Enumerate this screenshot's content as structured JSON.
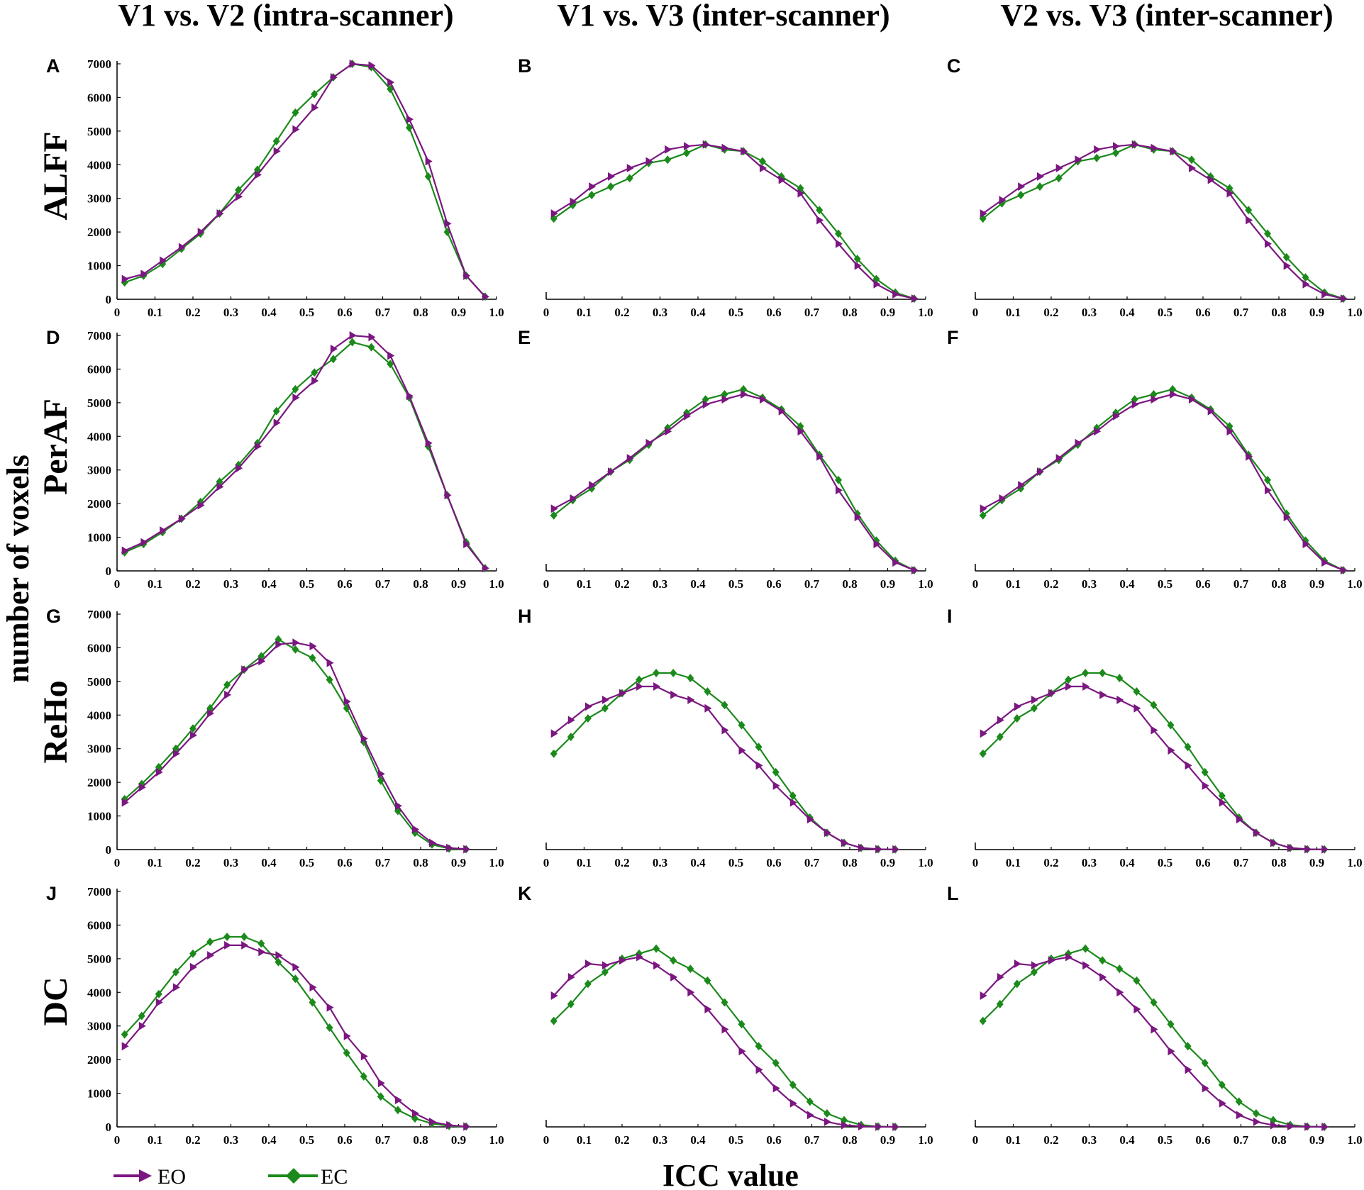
{
  "figure": {
    "column_headers": [
      "V1 vs. V2 (intra-scanner)",
      "V1 vs. V3 (inter-scanner)",
      "V2 vs. V3 (inter-scanner)"
    ],
    "row_labels": [
      "ALFF",
      "PerAF",
      "ReHo",
      "DC"
    ],
    "ylabel": "number of voxels",
    "xlabel": "ICC value",
    "legend": [
      {
        "name": "EO",
        "color": "#7b1780",
        "marker": "triangle-right"
      },
      {
        "name": "EC",
        "color": "#1b8a1b",
        "marker": "diamond"
      }
    ],
    "y_ticks": [
      0,
      1000,
      2000,
      3000,
      4000,
      5000,
      6000,
      7000
    ],
    "x_ticks": [
      "0",
      "0.1",
      "0.2",
      "0.3",
      "0.4",
      "0.5",
      "0.6",
      "0.7",
      "0.8",
      "0.9",
      "1.0"
    ]
  },
  "chart_data": [
    {
      "panel": "A",
      "type": "line",
      "row": "ALFF",
      "column": "V1 vs. V2 (intra-scanner)",
      "xlim": [
        0,
        1
      ],
      "ylim": [
        0,
        7000
      ],
      "y_axis_labels": true,
      "x": [
        0.02,
        0.07,
        0.12,
        0.17,
        0.22,
        0.27,
        0.32,
        0.37,
        0.42,
        0.47,
        0.52,
        0.57,
        0.62,
        0.67,
        0.72,
        0.77,
        0.82,
        0.87,
        0.92,
        0.97
      ],
      "series": [
        {
          "name": "EO",
          "values": [
            600,
            750,
            1150,
            1550,
            2000,
            2550,
            3050,
            3700,
            4400,
            5050,
            5700,
            6600,
            7000,
            6950,
            6450,
            5350,
            4100,
            2250,
            700,
            80
          ]
        },
        {
          "name": "EC",
          "values": [
            500,
            700,
            1050,
            1500,
            1950,
            2550,
            3250,
            3850,
            4700,
            5550,
            6100,
            6600,
            7000,
            6900,
            6250,
            5100,
            3650,
            2000,
            700,
            80
          ]
        }
      ]
    },
    {
      "panel": "B",
      "type": "line",
      "row": "ALFF",
      "column": "V1 vs. V3 (inter-scanner)",
      "xlim": [
        0,
        1
      ],
      "ylim": [
        0,
        7000
      ],
      "y_axis_labels": false,
      "x": [
        0.02,
        0.07,
        0.12,
        0.17,
        0.22,
        0.27,
        0.32,
        0.37,
        0.42,
        0.47,
        0.52,
        0.57,
        0.62,
        0.67,
        0.72,
        0.77,
        0.82,
        0.87,
        0.92,
        0.97
      ],
      "series": [
        {
          "name": "EO",
          "values": [
            2550,
            2900,
            3350,
            3650,
            3900,
            4100,
            4450,
            4550,
            4600,
            4500,
            4400,
            3900,
            3550,
            3150,
            2350,
            1650,
            1000,
            450,
            150,
            20
          ]
        },
        {
          "name": "EC",
          "values": [
            2400,
            2800,
            3100,
            3350,
            3600,
            4050,
            4150,
            4350,
            4600,
            4450,
            4400,
            4100,
            3650,
            3300,
            2650,
            1950,
            1200,
            600,
            200,
            20
          ]
        }
      ]
    },
    {
      "panel": "C",
      "type": "line",
      "row": "ALFF",
      "column": "V2 vs. V3 (inter-scanner)",
      "xlim": [
        0,
        1
      ],
      "ylim": [
        0,
        7000
      ],
      "y_axis_labels": false,
      "x": [
        0.02,
        0.07,
        0.12,
        0.17,
        0.22,
        0.27,
        0.32,
        0.37,
        0.42,
        0.47,
        0.52,
        0.57,
        0.62,
        0.67,
        0.72,
        0.77,
        0.82,
        0.87,
        0.92,
        0.97
      ],
      "series": [
        {
          "name": "EO",
          "values": [
            2550,
            2950,
            3350,
            3650,
            3900,
            4150,
            4450,
            4550,
            4600,
            4500,
            4400,
            3900,
            3550,
            3150,
            2350,
            1650,
            1000,
            450,
            150,
            20
          ]
        },
        {
          "name": "EC",
          "values": [
            2400,
            2850,
            3100,
            3350,
            3600,
            4100,
            4200,
            4350,
            4600,
            4450,
            4400,
            4150,
            3650,
            3300,
            2650,
            1950,
            1250,
            650,
            200,
            20
          ]
        }
      ]
    },
    {
      "panel": "D",
      "type": "line",
      "row": "PerAF",
      "column": "V1 vs. V2 (intra-scanner)",
      "xlim": [
        0,
        1
      ],
      "ylim": [
        0,
        7000
      ],
      "y_axis_labels": true,
      "x": [
        0.02,
        0.07,
        0.12,
        0.17,
        0.22,
        0.27,
        0.32,
        0.37,
        0.42,
        0.47,
        0.52,
        0.57,
        0.62,
        0.67,
        0.72,
        0.77,
        0.82,
        0.87,
        0.92,
        0.97
      ],
      "series": [
        {
          "name": "EO",
          "values": [
            600,
            850,
            1200,
            1550,
            1950,
            2500,
            3050,
            3700,
            4400,
            5150,
            5650,
            6600,
            7000,
            6950,
            6400,
            5200,
            3800,
            2250,
            800,
            80
          ]
        },
        {
          "name": "EC",
          "values": [
            550,
            800,
            1150,
            1550,
            2050,
            2650,
            3150,
            3800,
            4750,
            5400,
            5900,
            6300,
            6800,
            6650,
            6150,
            5150,
            3700,
            2250,
            850,
            80
          ]
        }
      ]
    },
    {
      "panel": "E",
      "type": "line",
      "row": "PerAF",
      "column": "V1 vs. V3 (inter-scanner)",
      "xlim": [
        0,
        1
      ],
      "ylim": [
        0,
        7000
      ],
      "y_axis_labels": false,
      "x": [
        0.02,
        0.07,
        0.12,
        0.17,
        0.22,
        0.27,
        0.32,
        0.37,
        0.42,
        0.47,
        0.52,
        0.57,
        0.62,
        0.67,
        0.72,
        0.77,
        0.82,
        0.87,
        0.92,
        0.97
      ],
      "series": [
        {
          "name": "EO",
          "values": [
            1850,
            2150,
            2550,
            2950,
            3350,
            3800,
            4150,
            4600,
            4950,
            5100,
            5250,
            5100,
            4750,
            4150,
            3400,
            2400,
            1600,
            800,
            250,
            20
          ]
        },
        {
          "name": "EC",
          "values": [
            1650,
            2100,
            2450,
            2950,
            3300,
            3750,
            4250,
            4700,
            5100,
            5250,
            5400,
            5150,
            4800,
            4300,
            3450,
            2700,
            1700,
            900,
            300,
            20
          ]
        }
      ]
    },
    {
      "panel": "F",
      "type": "line",
      "row": "PerAF",
      "column": "V2 vs. V3 (inter-scanner)",
      "xlim": [
        0,
        1
      ],
      "ylim": [
        0,
        7000
      ],
      "y_axis_labels": false,
      "x": [
        0.02,
        0.07,
        0.12,
        0.17,
        0.22,
        0.27,
        0.32,
        0.37,
        0.42,
        0.47,
        0.52,
        0.57,
        0.62,
        0.67,
        0.72,
        0.77,
        0.82,
        0.87,
        0.92,
        0.97
      ],
      "series": [
        {
          "name": "EO",
          "values": [
            1850,
            2150,
            2550,
            2950,
            3350,
            3800,
            4150,
            4600,
            4950,
            5100,
            5250,
            5100,
            4750,
            4150,
            3400,
            2400,
            1600,
            800,
            250,
            20
          ]
        },
        {
          "name": "EC",
          "values": [
            1650,
            2100,
            2450,
            2950,
            3300,
            3750,
            4250,
            4700,
            5100,
            5250,
            5400,
            5150,
            4800,
            4300,
            3450,
            2700,
            1700,
            900,
            300,
            20
          ]
        }
      ]
    },
    {
      "panel": "G",
      "type": "line",
      "row": "ReHo",
      "column": "V1 vs. V2 (intra-scanner)",
      "xlim": [
        0,
        1
      ],
      "ylim": [
        0,
        7000
      ],
      "y_axis_labels": true,
      "x": [
        0.02,
        0.065,
        0.11,
        0.155,
        0.2,
        0.245,
        0.29,
        0.335,
        0.38,
        0.425,
        0.47,
        0.515,
        0.56,
        0.605,
        0.65,
        0.695,
        0.74,
        0.785,
        0.83,
        0.875,
        0.92
      ],
      "series": [
        {
          "name": "EO",
          "values": [
            1400,
            1850,
            2300,
            2850,
            3400,
            4050,
            4600,
            5350,
            5600,
            6100,
            6150,
            6050,
            5550,
            4400,
            3300,
            2250,
            1300,
            600,
            200,
            50,
            10
          ]
        },
        {
          "name": "EC",
          "values": [
            1500,
            1950,
            2450,
            3000,
            3600,
            4200,
            4900,
            5350,
            5750,
            6250,
            5950,
            5700,
            5050,
            4200,
            3200,
            2050,
            1150,
            500,
            150,
            30,
            10
          ]
        }
      ]
    },
    {
      "panel": "H",
      "type": "line",
      "row": "ReHo",
      "column": "V1 vs. V3 (inter-scanner)",
      "xlim": [
        0,
        1
      ],
      "ylim": [
        0,
        7000
      ],
      "y_axis_labels": false,
      "x": [
        0.02,
        0.065,
        0.11,
        0.155,
        0.2,
        0.245,
        0.29,
        0.335,
        0.38,
        0.425,
        0.47,
        0.515,
        0.56,
        0.605,
        0.65,
        0.695,
        0.74,
        0.785,
        0.83,
        0.875,
        0.92
      ],
      "series": [
        {
          "name": "EO",
          "values": [
            3450,
            3850,
            4250,
            4450,
            4650,
            4850,
            4850,
            4600,
            4450,
            4200,
            3550,
            2950,
            2500,
            1900,
            1400,
            900,
            500,
            200,
            50,
            10,
            5
          ]
        },
        {
          "name": "EC",
          "values": [
            2850,
            3350,
            3900,
            4200,
            4650,
            5050,
            5250,
            5250,
            5100,
            4700,
            4300,
            3700,
            3050,
            2300,
            1600,
            950,
            500,
            200,
            50,
            10,
            5
          ]
        }
      ]
    },
    {
      "panel": "I",
      "type": "line",
      "row": "ReHo",
      "column": "V2 vs. V3 (inter-scanner)",
      "xlim": [
        0,
        1
      ],
      "ylim": [
        0,
        7000
      ],
      "y_axis_labels": false,
      "x": [
        0.02,
        0.065,
        0.11,
        0.155,
        0.2,
        0.245,
        0.29,
        0.335,
        0.38,
        0.425,
        0.47,
        0.515,
        0.56,
        0.605,
        0.65,
        0.695,
        0.74,
        0.785,
        0.83,
        0.875,
        0.92
      ],
      "series": [
        {
          "name": "EO",
          "values": [
            3450,
            3850,
            4250,
            4450,
            4650,
            4850,
            4850,
            4600,
            4450,
            4200,
            3550,
            2950,
            2500,
            1900,
            1400,
            900,
            500,
            200,
            50,
            10,
            5
          ]
        },
        {
          "name": "EC",
          "values": [
            2850,
            3350,
            3900,
            4200,
            4650,
            5050,
            5250,
            5250,
            5100,
            4700,
            4300,
            3700,
            3050,
            2300,
            1600,
            950,
            500,
            200,
            50,
            10,
            5
          ]
        }
      ]
    },
    {
      "panel": "J",
      "type": "line",
      "row": "DC",
      "column": "V1 vs. V2 (intra-scanner)",
      "xlim": [
        0,
        1
      ],
      "ylim": [
        0,
        7000
      ],
      "y_axis_labels": true,
      "x": [
        0.02,
        0.065,
        0.11,
        0.155,
        0.2,
        0.245,
        0.29,
        0.335,
        0.38,
        0.425,
        0.47,
        0.515,
        0.56,
        0.605,
        0.65,
        0.695,
        0.74,
        0.785,
        0.83,
        0.875,
        0.92
      ],
      "series": [
        {
          "name": "EO",
          "values": [
            2400,
            3000,
            3700,
            4150,
            4750,
            5100,
            5400,
            5400,
            5200,
            5100,
            4750,
            4150,
            3550,
            2700,
            2100,
            1300,
            800,
            400,
            150,
            50,
            10
          ]
        },
        {
          "name": "EC",
          "values": [
            2750,
            3300,
            3950,
            4600,
            5150,
            5500,
            5650,
            5650,
            5450,
            4900,
            4400,
            3700,
            2950,
            2200,
            1500,
            900,
            500,
            250,
            100,
            30,
            10
          ]
        }
      ]
    },
    {
      "panel": "K",
      "type": "line",
      "row": "DC",
      "column": "V1 vs. V3 (inter-scanner)",
      "xlim": [
        0,
        1
      ],
      "ylim": [
        0,
        7000
      ],
      "y_axis_labels": false,
      "x": [
        0.02,
        0.065,
        0.11,
        0.155,
        0.2,
        0.245,
        0.29,
        0.335,
        0.38,
        0.425,
        0.47,
        0.515,
        0.56,
        0.605,
        0.65,
        0.695,
        0.74,
        0.785,
        0.83,
        0.875,
        0.92
      ],
      "series": [
        {
          "name": "EO",
          "values": [
            3900,
            4450,
            4850,
            4800,
            4950,
            5050,
            4800,
            4450,
            4000,
            3500,
            2900,
            2250,
            1700,
            1150,
            700,
            350,
            150,
            50,
            20,
            5,
            0
          ]
        },
        {
          "name": "EC",
          "values": [
            3150,
            3650,
            4250,
            4600,
            5000,
            5150,
            5300,
            4950,
            4700,
            4350,
            3700,
            3050,
            2400,
            1900,
            1250,
            750,
            400,
            200,
            60,
            10,
            0
          ]
        }
      ]
    },
    {
      "panel": "L",
      "type": "line",
      "row": "DC",
      "column": "V2 vs. V3 (inter-scanner)",
      "xlim": [
        0,
        1
      ],
      "ylim": [
        0,
        7000
      ],
      "y_axis_labels": false,
      "x": [
        0.02,
        0.065,
        0.11,
        0.155,
        0.2,
        0.245,
        0.29,
        0.335,
        0.38,
        0.425,
        0.47,
        0.515,
        0.56,
        0.605,
        0.65,
        0.695,
        0.74,
        0.785,
        0.83,
        0.875,
        0.92
      ],
      "series": [
        {
          "name": "EO",
          "values": [
            3900,
            4450,
            4850,
            4800,
            4950,
            5050,
            4800,
            4450,
            4000,
            3500,
            2900,
            2250,
            1700,
            1150,
            700,
            350,
            150,
            50,
            20,
            5,
            0
          ]
        },
        {
          "name": "EC",
          "values": [
            3150,
            3650,
            4250,
            4600,
            5000,
            5150,
            5300,
            4950,
            4700,
            4350,
            3700,
            3050,
            2400,
            1900,
            1250,
            750,
            400,
            200,
            60,
            10,
            0
          ]
        }
      ]
    }
  ]
}
